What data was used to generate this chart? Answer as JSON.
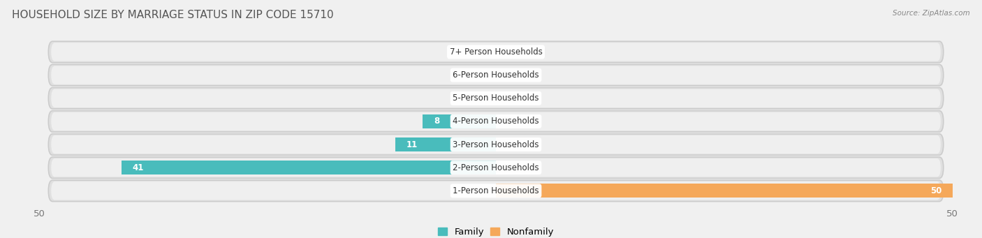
{
  "title": "HOUSEHOLD SIZE BY MARRIAGE STATUS IN ZIP CODE 15710",
  "source": "Source: ZipAtlas.com",
  "categories": [
    "1-Person Households",
    "2-Person Households",
    "3-Person Households",
    "4-Person Households",
    "5-Person Households",
    "6-Person Households",
    "7+ Person Households"
  ],
  "family_values": [
    0,
    41,
    11,
    8,
    0,
    0,
    0
  ],
  "nonfamily_values": [
    50,
    0,
    0,
    0,
    0,
    0,
    0
  ],
  "family_color": "#49BCBC",
  "nonfamily_color": "#F5A85A",
  "xlim_left": -50,
  "xlim_right": 50,
  "bar_height": 0.6,
  "bg_color": "#f0f0f0",
  "pill_color": "#e8e8e8",
  "pill_edge_color": "#d0d0d0",
  "label_fontsize": 9.5,
  "title_fontsize": 11,
  "value_label_fontsize": 8.5,
  "category_label_fontsize": 8.5,
  "title_color": "#555555",
  "source_color": "#888888",
  "tick_color": "#777777"
}
